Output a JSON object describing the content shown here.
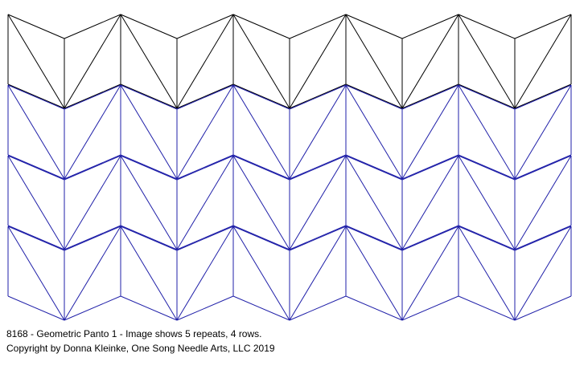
{
  "pattern": {
    "name": "Geometric Panto 1",
    "repeats": 5,
    "rows": 4,
    "colors": {
      "first_row": "#000000",
      "rows": "#1f1fa8"
    }
  },
  "caption": {
    "line1": "8168 - Geometric Panto 1 - Image shows 5 repeats, 4 rows.",
    "line2": "Copyright by Donna Kleinke, One Song Needle Arts, LLC 2019"
  }
}
